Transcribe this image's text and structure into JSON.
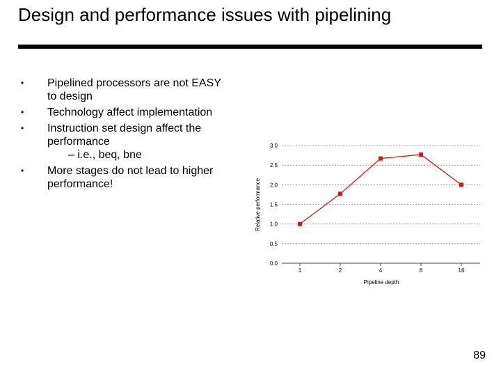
{
  "slide": {
    "title": "Design and performance issues with pipelining",
    "bullets": [
      "Pipelined processors are not EASY to design",
      "Technology affect implementation",
      "Instruction set design affect the performance",
      "More stages do not lead to higher performance!"
    ],
    "sub_bullet": "– i.e., beq, bne",
    "page_number": "89"
  },
  "chart_data": {
    "type": "line",
    "categories": [
      "1",
      "2",
      "4",
      "8",
      "16"
    ],
    "values": [
      1.0,
      1.77,
      2.67,
      2.77,
      2.0
    ],
    "xlabel": "Pipeline depth",
    "ylabel": "Relative performance",
    "ylim": [
      0,
      3.0
    ],
    "yticks": [
      "0.0",
      "0.5",
      "1.0",
      "1.5",
      "2.0",
      "2.5",
      "3.0"
    ],
    "grid": true,
    "line_color": "#dd1111",
    "marker_color": "#dd1111"
  }
}
